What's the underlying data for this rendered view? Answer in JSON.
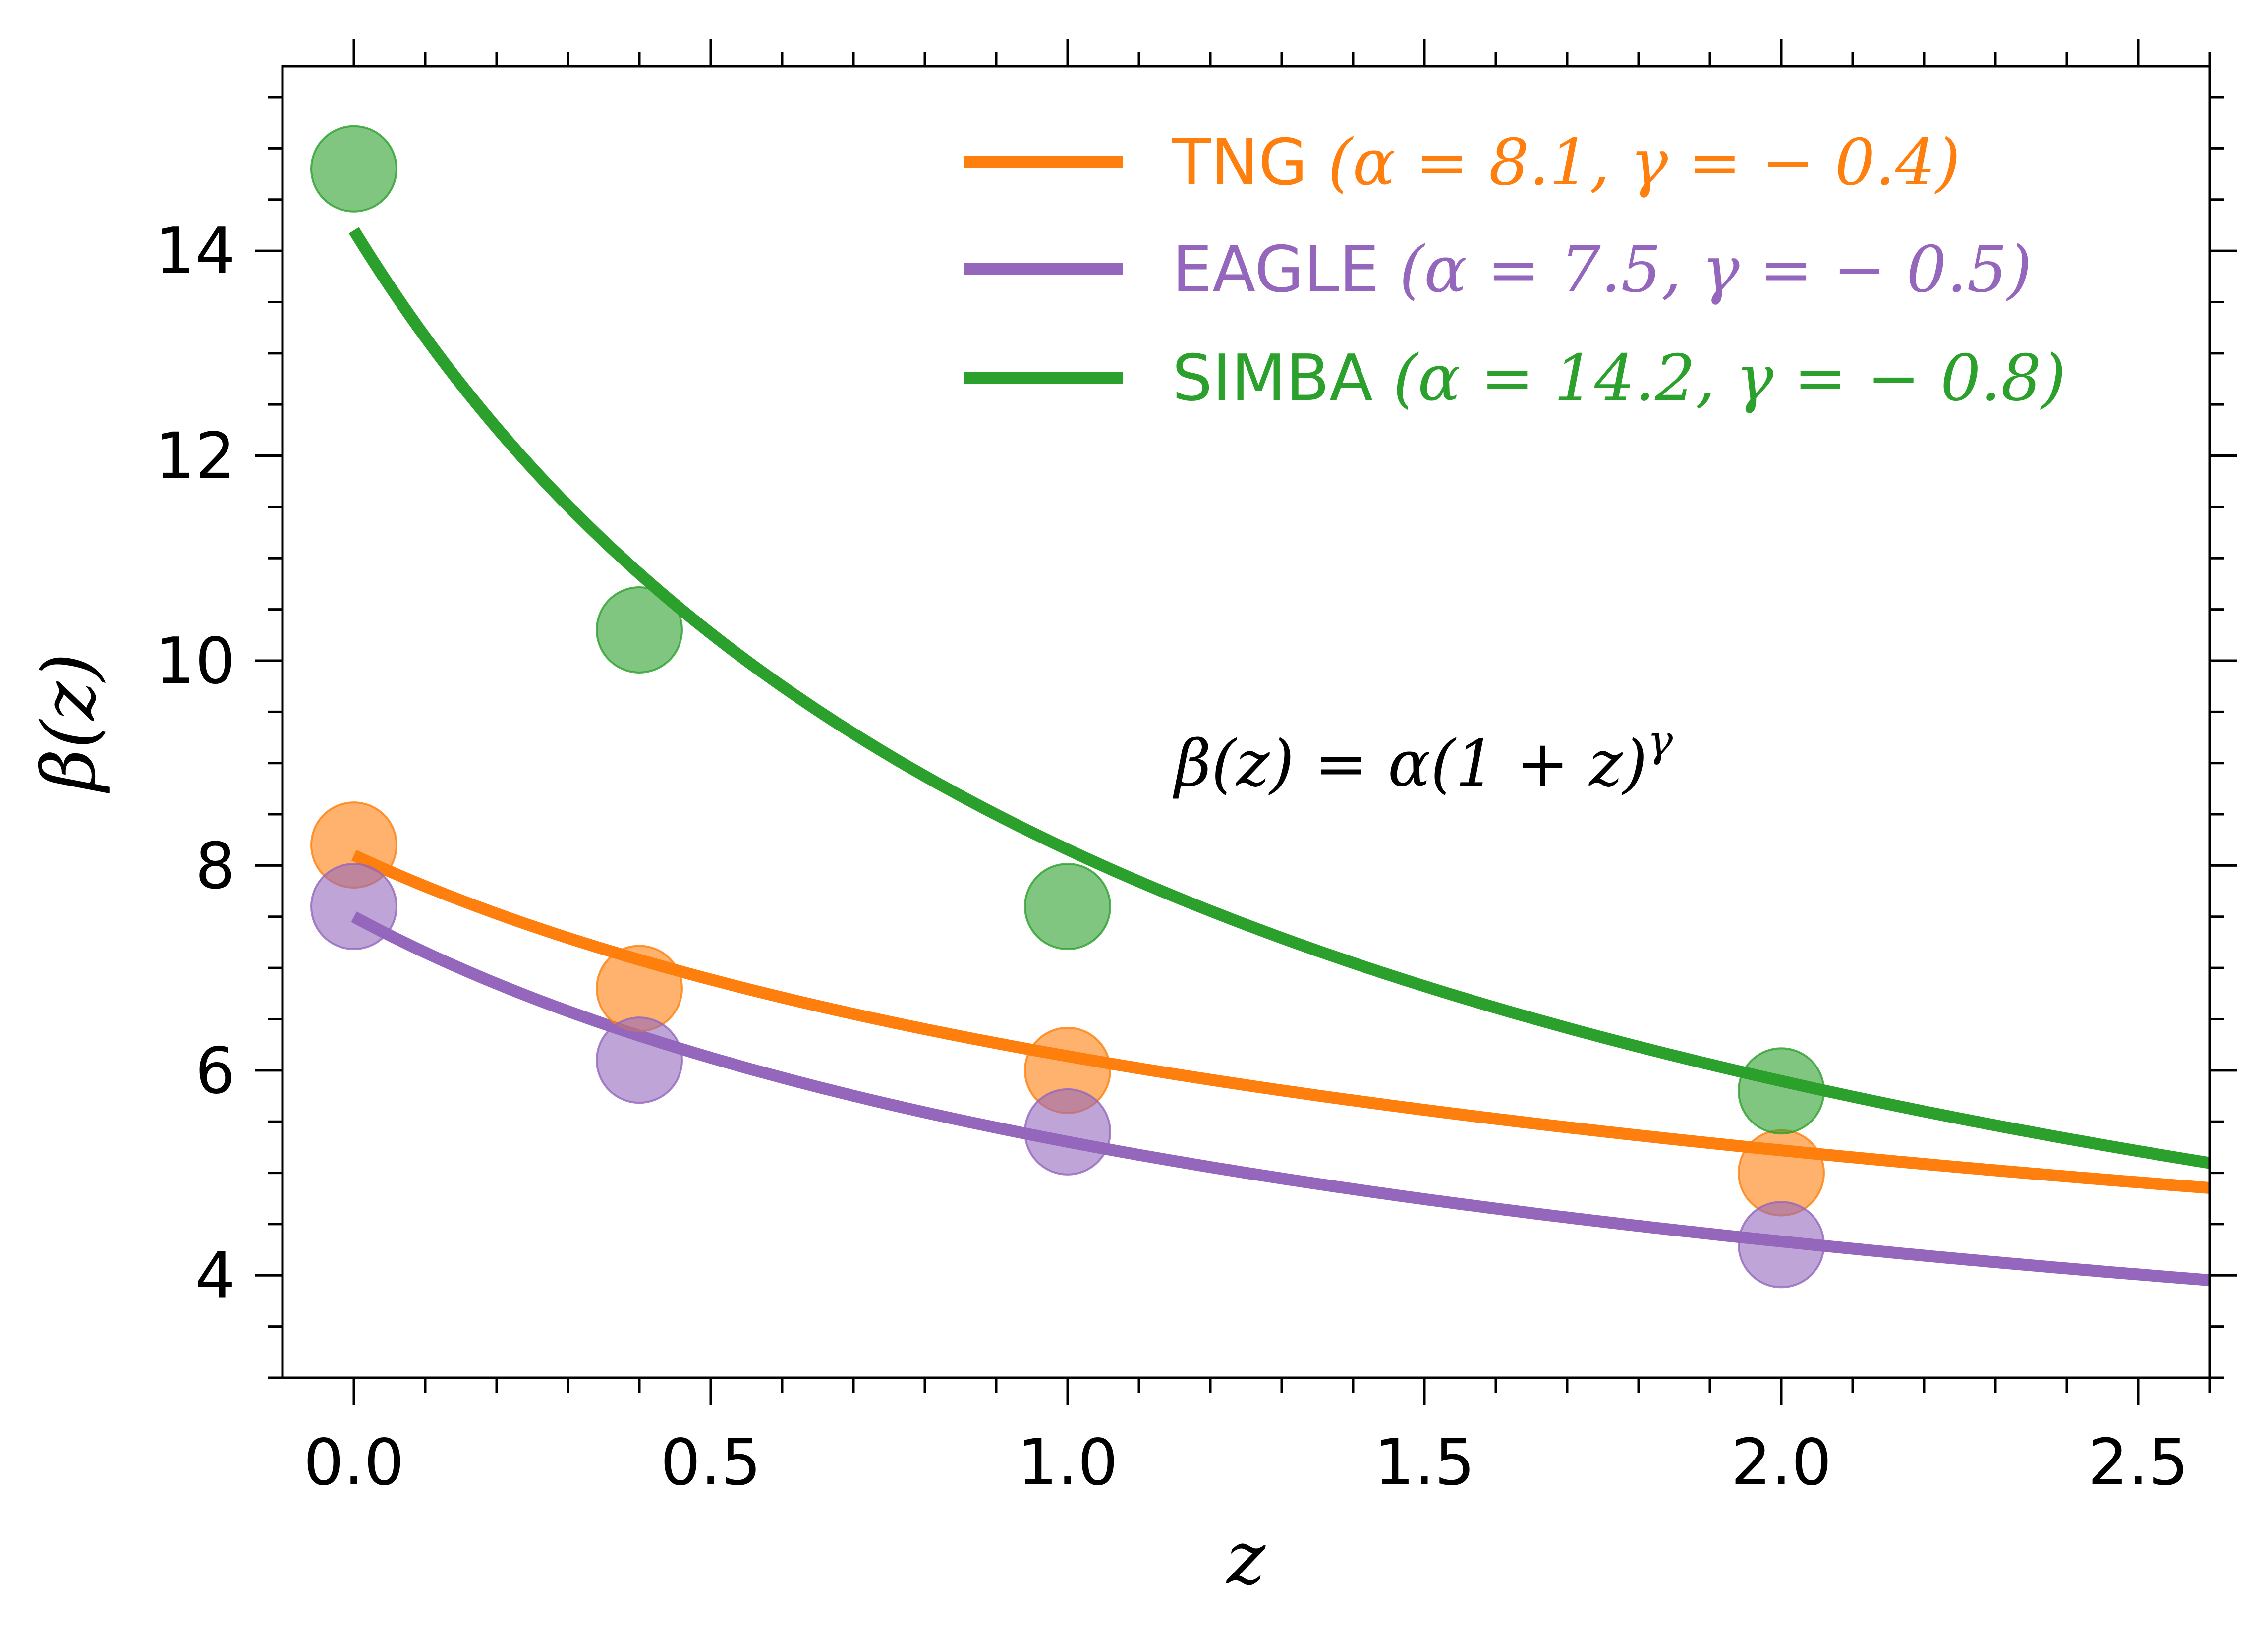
{
  "chart_data": {
    "type": "scatter",
    "xlabel": "z",
    "ylabel": "β(z)",
    "xlim": [
      -0.1,
      2.6
    ],
    "ylim": [
      3.0,
      15.8
    ],
    "x_ticks": [
      0.0,
      0.5,
      1.0,
      1.5,
      2.0,
      2.5
    ],
    "x_tick_labels": [
      "0.0",
      "0.5",
      "1.0",
      "1.5",
      "2.0",
      "2.5"
    ],
    "y_ticks": [
      4,
      6,
      8,
      10,
      12,
      14
    ],
    "y_tick_labels": [
      "4",
      "6",
      "8",
      "10",
      "12",
      "14"
    ],
    "x_minor_step": 0.1,
    "y_minor_step": 0.5,
    "annotation": "β(z) = α(1 + z)^γ",
    "annotation_parts": {
      "base": "β(z) = α(1 + z)",
      "exponent": "γ"
    },
    "legend_position": "top-right",
    "series": [
      {
        "name": "TNG (α = 8.1, γ = − 0.4)",
        "label_parts": {
          "name": "TNG",
          "params": "(α = 8.1, γ = − 0.4)"
        },
        "color": "#ff7f0e",
        "alpha": 8.1,
        "gamma": -0.4,
        "points": [
          [
            0.0,
            8.2
          ],
          [
            0.4,
            6.8
          ],
          [
            1.0,
            6.0
          ],
          [
            2.0,
            5.0
          ]
        ]
      },
      {
        "name": "EAGLE (α = 7.5, γ = − 0.5)",
        "label_parts": {
          "name": "EAGLE",
          "params": "(α = 7.5, γ = − 0.5)"
        },
        "color": "#9467bd",
        "alpha": 7.5,
        "gamma": -0.5,
        "points": [
          [
            0.0,
            7.6
          ],
          [
            0.4,
            6.1
          ],
          [
            1.0,
            5.4
          ],
          [
            2.0,
            4.3
          ]
        ]
      },
      {
        "name": "SIMBA (α = 14.2, γ = − 0.8)",
        "label_parts": {
          "name": "SIMBA",
          "params": "(α = 14.2, γ = − 0.8)"
        },
        "color": "#2ca02c",
        "alpha": 14.2,
        "gamma": -0.8,
        "points": [
          [
            0.0,
            14.8
          ],
          [
            0.4,
            10.3
          ],
          [
            1.0,
            7.6
          ],
          [
            2.0,
            5.8
          ]
        ]
      }
    ]
  }
}
